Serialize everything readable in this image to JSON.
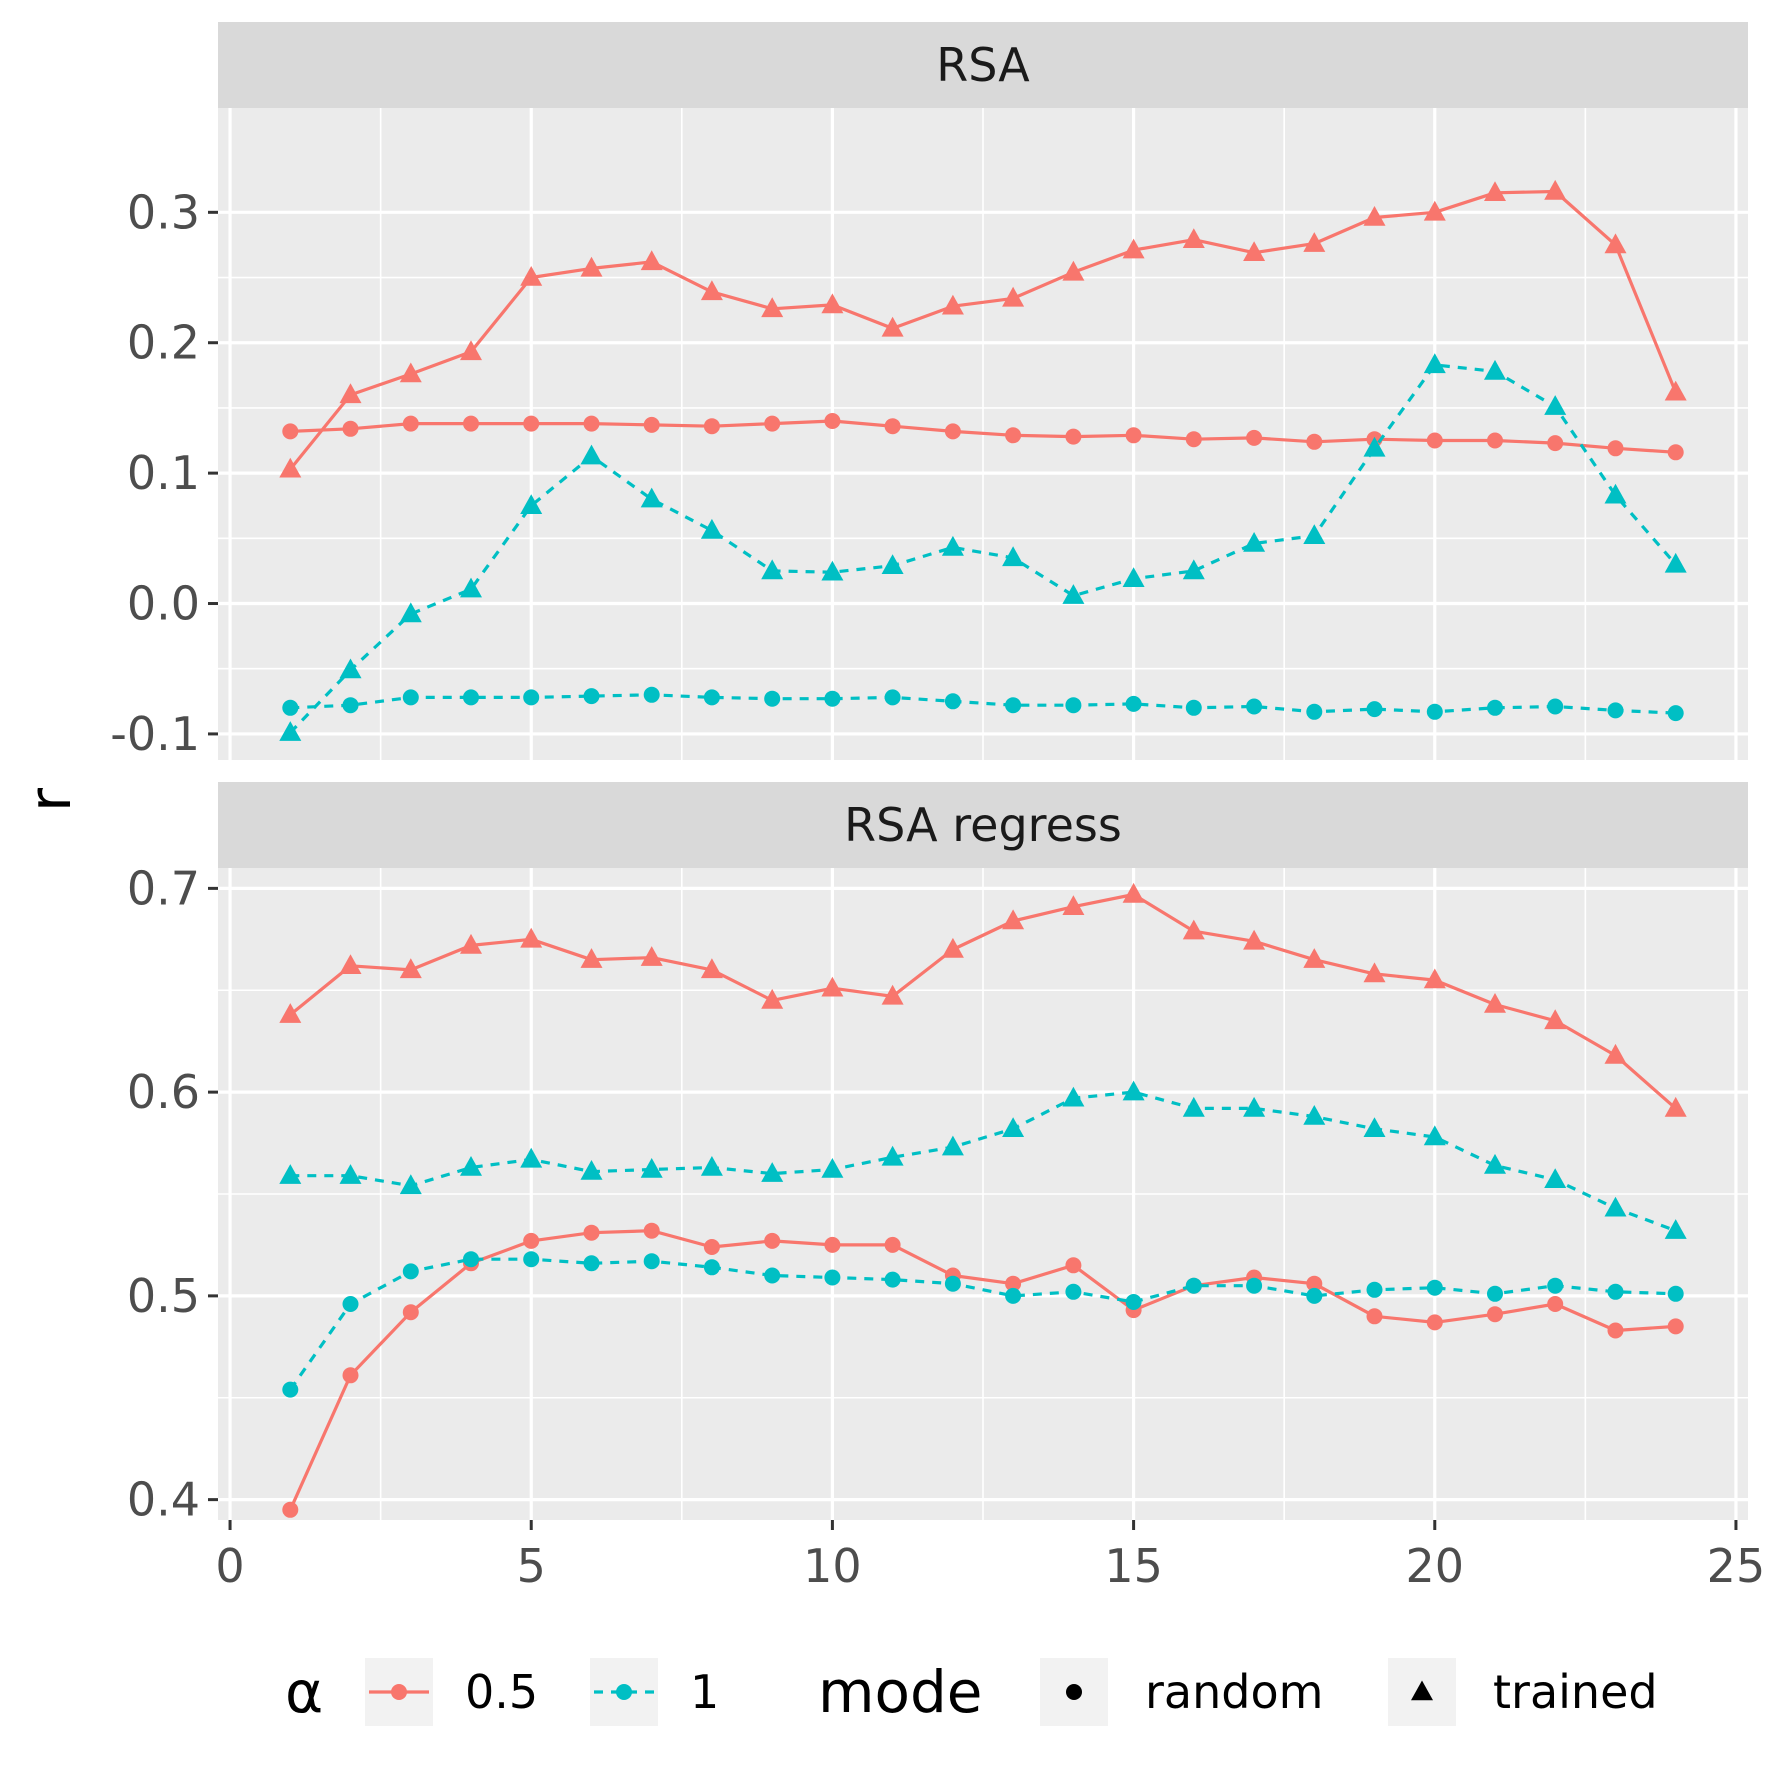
{
  "chart_data": {
    "type": "line",
    "ylabel": "r",
    "x_axis": {
      "range": [
        -0.2,
        25.2
      ],
      "ticks": [
        0,
        5,
        10,
        15,
        20,
        25
      ]
    },
    "facets": [
      {
        "title": "RSA",
        "y_range": [
          -0.12,
          0.38
        ],
        "y_ticks": [
          -0.1,
          0.0,
          0.1,
          0.2,
          0.3
        ],
        "y_tick_labels": [
          "-0.1",
          "0.0",
          "0.1",
          "0.2",
          "0.3"
        ],
        "series": [
          {
            "alpha": "0.5",
            "mode": "trained",
            "x": [
              1,
              2,
              3,
              4,
              5,
              6,
              7,
              8,
              9,
              10,
              11,
              12,
              13,
              14,
              15,
              16,
              17,
              18,
              19,
              20,
              21,
              22,
              23,
              24
            ],
            "y": [
              0.103,
              0.16,
              0.176,
              0.193,
              0.25,
              0.257,
              0.262,
              0.239,
              0.226,
              0.229,
              0.211,
              0.228,
              0.234,
              0.254,
              0.271,
              0.279,
              0.269,
              0.276,
              0.296,
              0.3,
              0.315,
              0.316,
              0.275,
              0.162
            ]
          },
          {
            "alpha": "0.5",
            "mode": "random",
            "x": [
              1,
              2,
              3,
              4,
              5,
              6,
              7,
              8,
              9,
              10,
              11,
              12,
              13,
              14,
              15,
              16,
              17,
              18,
              19,
              20,
              21,
              22,
              23,
              24
            ],
            "y": [
              0.132,
              0.134,
              0.138,
              0.138,
              0.138,
              0.138,
              0.137,
              0.136,
              0.138,
              0.14,
              0.136,
              0.132,
              0.129,
              0.128,
              0.129,
              0.126,
              0.127,
              0.124,
              0.126,
              0.125,
              0.125,
              0.123,
              0.119,
              0.116
            ]
          },
          {
            "alpha": "1",
            "mode": "trained",
            "x": [
              1,
              2,
              3,
              4,
              5,
              6,
              7,
              8,
              9,
              10,
              11,
              12,
              13,
              14,
              15,
              16,
              17,
              18,
              19,
              20,
              21,
              22,
              23,
              24
            ],
            "y": [
              -0.099,
              -0.051,
              -0.008,
              0.011,
              0.075,
              0.113,
              0.08,
              0.056,
              0.025,
              0.024,
              0.029,
              0.043,
              0.035,
              0.006,
              0.019,
              0.025,
              0.046,
              0.052,
              0.119,
              0.183,
              0.178,
              0.151,
              0.083,
              0.03
            ]
          },
          {
            "alpha": "1",
            "mode": "random",
            "x": [
              1,
              2,
              3,
              4,
              5,
              6,
              7,
              8,
              9,
              10,
              11,
              12,
              13,
              14,
              15,
              16,
              17,
              18,
              19,
              20,
              21,
              22,
              23,
              24
            ],
            "y": [
              -0.08,
              -0.078,
              -0.072,
              -0.072,
              -0.072,
              -0.071,
              -0.07,
              -0.072,
              -0.073,
              -0.073,
              -0.072,
              -0.075,
              -0.078,
              -0.078,
              -0.077,
              -0.08,
              -0.079,
              -0.083,
              -0.081,
              -0.083,
              -0.08,
              -0.079,
              -0.082,
              -0.084
            ]
          }
        ]
      },
      {
        "title": "RSA regress",
        "y_range": [
          0.39,
          0.71
        ],
        "y_ticks": [
          0.4,
          0.5,
          0.6,
          0.7
        ],
        "y_tick_labels": [
          "0.4",
          "0.5",
          "0.6",
          "0.7"
        ],
        "series": [
          {
            "alpha": "0.5",
            "mode": "trained",
            "x": [
              1,
              2,
              3,
              4,
              5,
              6,
              7,
              8,
              9,
              10,
              11,
              12,
              13,
              14,
              15,
              16,
              17,
              18,
              19,
              20,
              21,
              22,
              23,
              24
            ],
            "y": [
              0.638,
              0.662,
              0.66,
              0.672,
              0.675,
              0.665,
              0.666,
              0.66,
              0.645,
              0.651,
              0.647,
              0.67,
              0.684,
              0.691,
              0.697,
              0.679,
              0.674,
              0.665,
              0.658,
              0.655,
              0.643,
              0.635,
              0.618,
              0.592
            ]
          },
          {
            "alpha": "0.5",
            "mode": "random",
            "x": [
              1,
              2,
              3,
              4,
              5,
              6,
              7,
              8,
              9,
              10,
              11,
              12,
              13,
              14,
              15,
              16,
              17,
              18,
              19,
              20,
              21,
              22,
              23,
              24
            ],
            "y": [
              0.395,
              0.461,
              0.492,
              0.516,
              0.527,
              0.531,
              0.532,
              0.524,
              0.527,
              0.525,
              0.525,
              0.51,
              0.506,
              0.515,
              0.493,
              0.505,
              0.509,
              0.506,
              0.49,
              0.487,
              0.491,
              0.496,
              0.483,
              0.485
            ]
          },
          {
            "alpha": "1",
            "mode": "trained",
            "x": [
              1,
              2,
              3,
              4,
              5,
              6,
              7,
              8,
              9,
              10,
              11,
              12,
              13,
              14,
              15,
              16,
              17,
              18,
              19,
              20,
              21,
              22,
              23,
              24
            ],
            "y": [
              0.559,
              0.559,
              0.554,
              0.563,
              0.567,
              0.561,
              0.562,
              0.563,
              0.56,
              0.562,
              0.568,
              0.573,
              0.582,
              0.597,
              0.6,
              0.592,
              0.592,
              0.588,
              0.582,
              0.578,
              0.564,
              0.557,
              0.543,
              0.532
            ]
          },
          {
            "alpha": "1",
            "mode": "random",
            "x": [
              1,
              2,
              3,
              4,
              5,
              6,
              7,
              8,
              9,
              10,
              11,
              12,
              13,
              14,
              15,
              16,
              17,
              18,
              19,
              20,
              21,
              22,
              23,
              24
            ],
            "y": [
              0.454,
              0.496,
              0.512,
              0.518,
              0.518,
              0.516,
              0.517,
              0.514,
              0.51,
              0.509,
              0.508,
              0.506,
              0.5,
              0.502,
              0.497,
              0.505,
              0.505,
              0.5,
              0.503,
              0.504,
              0.501,
              0.505,
              0.502,
              0.501
            ]
          }
        ]
      }
    ],
    "legend": {
      "position": "bottom",
      "alpha_title": "α",
      "alpha_items": [
        {
          "label": "0.5",
          "color": "#F8766D",
          "linetype": "solid"
        },
        {
          "label": "1",
          "color": "#00BFC4",
          "linetype": "dashed"
        }
      ],
      "mode_title": "mode",
      "mode_items": [
        {
          "label": "random",
          "shape": "circle"
        },
        {
          "label": "trained",
          "shape": "triangle"
        }
      ]
    },
    "panel_background": "#EBEBEB",
    "strip_background": "#D9D9D9",
    "grid": true
  }
}
